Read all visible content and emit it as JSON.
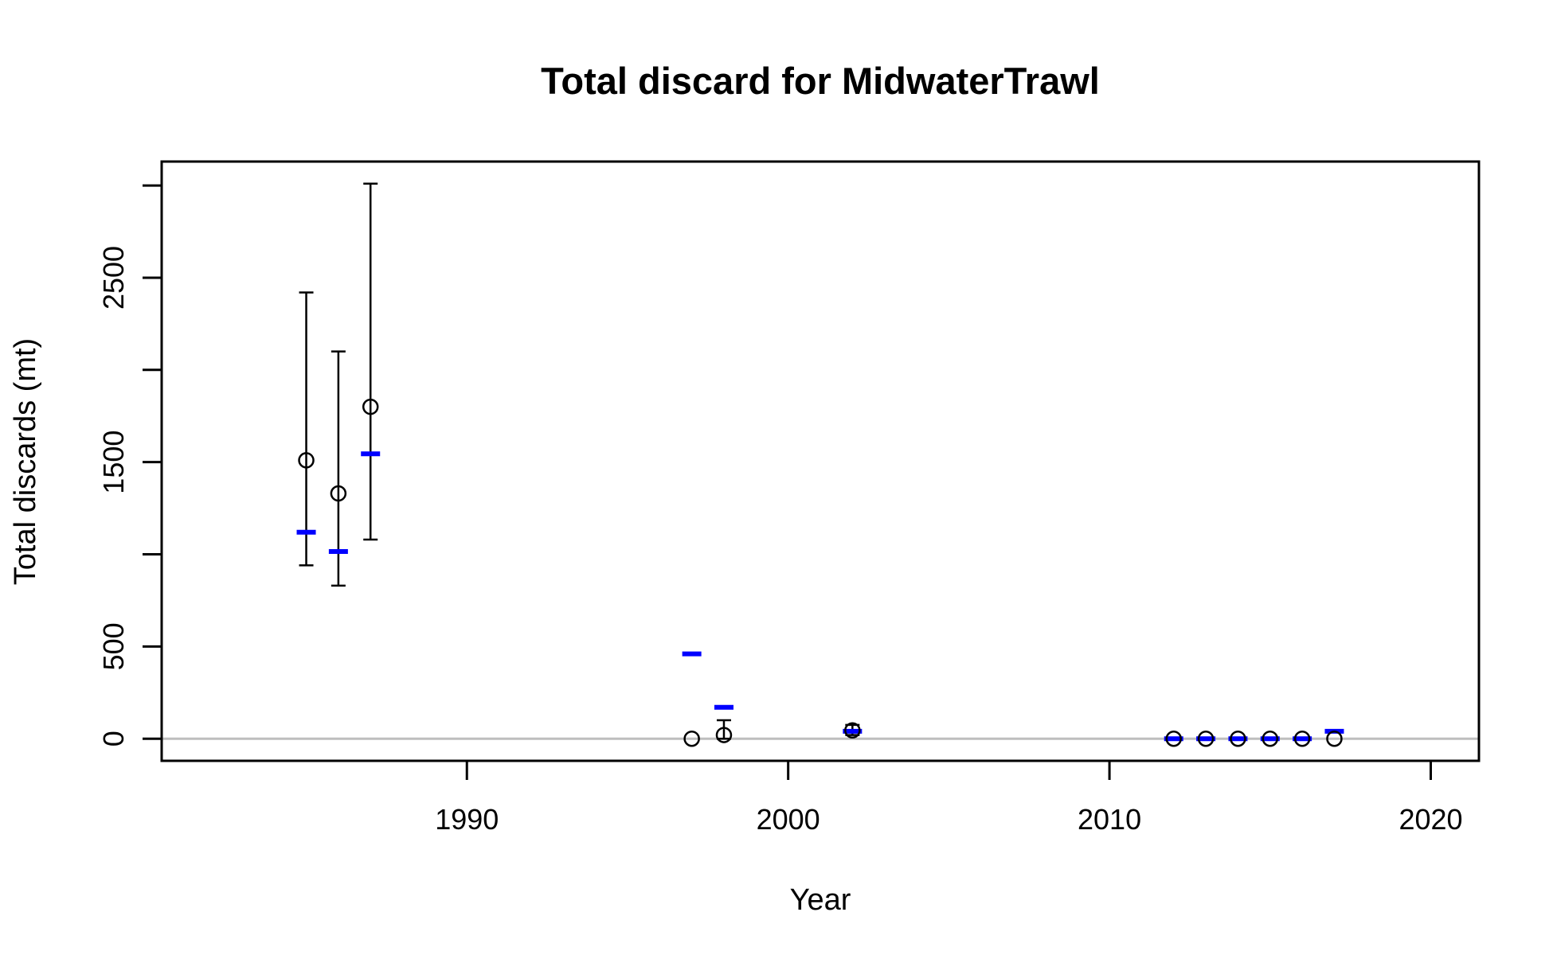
{
  "chart_data": {
    "type": "scatter",
    "title": "Total discard for MidwaterTrawl",
    "xlabel": "Year",
    "ylabel": "Total discards (mt)",
    "xlim": [
      1980.5,
      2021.5
    ],
    "ylim": [
      -120,
      3130
    ],
    "xticks": [
      1990,
      2000,
      2010,
      2020
    ],
    "xtick_labels": [
      "1990",
      "2000",
      "2010",
      "2020"
    ],
    "yticks": [
      0,
      500,
      1000,
      1500,
      2000,
      2500,
      3000
    ],
    "ytick_labels": [
      "0",
      "500",
      "",
      "1500",
      "",
      "2500",
      ""
    ],
    "reference_line": {
      "y": 0,
      "color": "#bebebe"
    },
    "grid": false,
    "legend": "none",
    "series": [
      {
        "role": "observed",
        "marker": "open-circle",
        "color": "#000000",
        "points": [
          {
            "x": 1985,
            "y": 1510,
            "lower": 940,
            "upper": 2420
          },
          {
            "x": 1986,
            "y": 1330,
            "lower": 830,
            "upper": 2100
          },
          {
            "x": 1987,
            "y": 1800,
            "lower": 1080,
            "upper": 3010
          },
          {
            "x": 1997,
            "y": 0
          },
          {
            "x": 1998,
            "y": 20,
            "lower": 0,
            "upper": 100
          },
          {
            "x": 2002,
            "y": 45,
            "lower": 20,
            "upper": 75
          },
          {
            "x": 2012,
            "y": 0
          },
          {
            "x": 2013,
            "y": 0
          },
          {
            "x": 2014,
            "y": 0
          },
          {
            "x": 2015,
            "y": 0
          },
          {
            "x": 2016,
            "y": 0
          },
          {
            "x": 2017,
            "y": 0
          }
        ]
      },
      {
        "role": "expected",
        "marker": "dash",
        "color": "#0000ff",
        "points": [
          {
            "x": 1985,
            "y": 1120
          },
          {
            "x": 1986,
            "y": 1015
          },
          {
            "x": 1987,
            "y": 1545
          },
          {
            "x": 1997,
            "y": 460
          },
          {
            "x": 1998,
            "y": 170
          },
          {
            "x": 2002,
            "y": 40
          },
          {
            "x": 2012,
            "y": 0
          },
          {
            "x": 2013,
            "y": 0
          },
          {
            "x": 2014,
            "y": 0
          },
          {
            "x": 2015,
            "y": 0
          },
          {
            "x": 2016,
            "y": 0
          },
          {
            "x": 2017,
            "y": 40
          }
        ]
      }
    ]
  }
}
